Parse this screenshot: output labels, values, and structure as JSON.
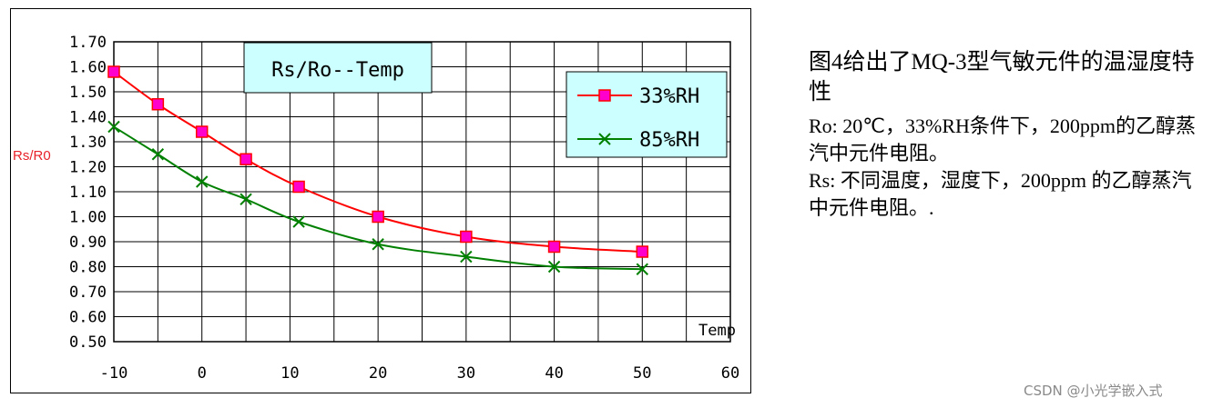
{
  "chart_data": {
    "type": "line",
    "title": "Rs/Ro--Temp",
    "ylabel": "Rs/R0",
    "xlabel": "Temp",
    "xlim": [
      -10,
      60
    ],
    "ylim": [
      0.5,
      1.7
    ],
    "xticks": [
      "-10",
      "0",
      "10",
      "20",
      "30",
      "40",
      "50",
      "60"
    ],
    "yticks": [
      "1.70",
      "1.60",
      "1.50",
      "1.40",
      "1.30",
      "1.20",
      "1.10",
      "1.00",
      "0.90",
      "0.80",
      "0.70",
      "0.60",
      "0.50"
    ],
    "grid": true,
    "legend_position": "top-right",
    "series": [
      {
        "name": "33%RH",
        "color": "#ff0000",
        "marker_color": "#ff00cc",
        "marker": "square",
        "x": [
          -10,
          -5,
          0,
          5,
          11,
          20,
          30,
          40,
          50
        ],
        "y": [
          1.58,
          1.45,
          1.34,
          1.23,
          1.12,
          1.0,
          0.92,
          0.88,
          0.86
        ]
      },
      {
        "name": "85%RH",
        "color": "#008000",
        "marker": "x",
        "x": [
          -10,
          -5,
          0,
          5,
          11,
          20,
          30,
          40,
          50
        ],
        "y": [
          1.36,
          1.25,
          1.14,
          1.07,
          0.98,
          0.89,
          0.84,
          0.8,
          0.79
        ]
      }
    ]
  },
  "description": {
    "title": "图4给出了MQ-3型气敏元件的温湿度特性",
    "lines": [
      "Ro: 20℃，33%RH条件下，200ppm的乙醇蒸汽中元件电阻。",
      "Rs: 不同温度，湿度下，200ppm 的乙醇蒸汽中元件电阻。."
    ]
  },
  "watermark": "CSDN @小光学嵌入式"
}
